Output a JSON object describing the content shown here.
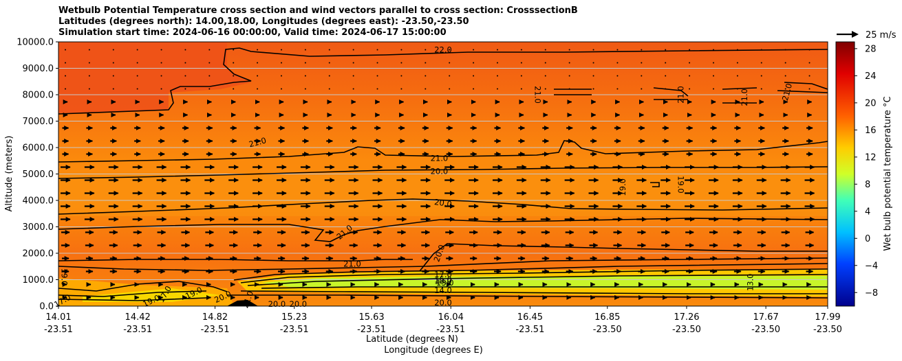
{
  "titles": [
    "Wetbulb Potential Temperature cross section and wind vectors parallel to cross section: CrosssectionB",
    "Latitudes (degrees north): 14.00,18.00, Longitudes (degrees east): -23.50,-23.50",
    "Simulation start time: 2024-06-16 00:00:00, Valid time: 2024-06-17 15:00:00"
  ],
  "quiver_key": "25 m/s",
  "colorbar_label": "Wet bulb potential temperature °C",
  "chart_data": {
    "type": "heatmap",
    "title": "Wetbulb Potential Temperature cross section and wind vectors parallel to cross section: CrosssectionB",
    "ylabel": "Altitude (meters)",
    "xlabel_lat": "Latitude (degrees N)",
    "xlabel_lon": "Longitude (degrees E)",
    "ylim": [
      0,
      10000
    ],
    "y_ticks": [
      "0.0",
      "1000.0",
      "2000.0",
      "3000.0",
      "4000.0",
      "5000.0",
      "6000.0",
      "7000.0",
      "8000.0",
      "9000.0",
      "10000.0"
    ],
    "x_ticks": [
      {
        "lat": "14.01",
        "lon": "-23.51"
      },
      {
        "lat": "14.42",
        "lon": "-23.51"
      },
      {
        "lat": "14.82",
        "lon": "-23.51"
      },
      {
        "lat": "15.23",
        "lon": "-23.51"
      },
      {
        "lat": "15.63",
        "lon": "-23.51"
      },
      {
        "lat": "16.04",
        "lon": "-23.51"
      },
      {
        "lat": "16.45",
        "lon": "-23.51"
      },
      {
        "lat": "16.85",
        "lon": "-23.50"
      },
      {
        "lat": "17.26",
        "lon": "-23.50"
      },
      {
        "lat": "17.67",
        "lon": "-23.50"
      },
      {
        "lat": "17.99",
        "lon": "-23.50"
      }
    ],
    "lat_range": [
      14.01,
      17.99
    ],
    "colorbar_ticks": [
      "28",
      "24",
      "20",
      "16",
      "12",
      "8",
      "4",
      "0",
      "−4",
      "−8"
    ],
    "colorbar_range": [
      -10,
      29
    ],
    "grid": "horizontal",
    "contour_labels": [
      {
        "text": "22.0",
        "lat": 16.0,
        "alt": 9700,
        "rot": 0
      },
      {
        "text": "21.0",
        "lat": 15.04,
        "alt": 6200,
        "rot": -15
      },
      {
        "text": "21.0",
        "lat": 15.98,
        "alt": 5600,
        "rot": 0
      },
      {
        "text": "20.0",
        "lat": 15.98,
        "alt": 5100,
        "rot": 0
      },
      {
        "text": "20.0",
        "lat": 16.0,
        "alt": 3900,
        "rot": 8
      },
      {
        "text": "21.0",
        "lat": 15.49,
        "alt": 2800,
        "rot": -40
      },
      {
        "text": "21.0",
        "lat": 15.53,
        "alt": 1600,
        "rot": 0
      },
      {
        "text": "20.0",
        "lat": 15.98,
        "alt": 2000,
        "rot": -70
      },
      {
        "text": "21.0",
        "lat": 16.49,
        "alt": 8000,
        "rot": 90
      },
      {
        "text": "21.0",
        "lat": 17.23,
        "alt": 8000,
        "rot": -90
      },
      {
        "text": "21.0",
        "lat": 17.56,
        "alt": 7900,
        "rot": -90
      },
      {
        "text": "21.0",
        "lat": 17.78,
        "alt": 8100,
        "rot": -75
      },
      {
        "text": "19.0",
        "lat": 16.93,
        "alt": 4500,
        "rot": -90
      },
      {
        "text": "19.0",
        "lat": 17.23,
        "alt": 4600,
        "rot": 90
      },
      {
        "text": "19.0",
        "lat": 14.04,
        "alt": 1100,
        "rot": 90
      },
      {
        "text": "17.0",
        "lat": 16.0,
        "alt": 1200,
        "rot": 0
      },
      {
        "text": "15.0",
        "lat": 16.0,
        "alt": 1000,
        "rot": 0
      },
      {
        "text": "18.0",
        "lat": 16.0,
        "alt": 950,
        "rot": 0
      },
      {
        "text": "13.0",
        "lat": 16.01,
        "alt": 880,
        "rot": 0
      },
      {
        "text": "14.0",
        "lat": 16.0,
        "alt": 600,
        "rot": 0
      },
      {
        "text": "13.0",
        "lat": 17.59,
        "alt": 900,
        "rot": -90
      },
      {
        "text": "20.0",
        "lat": 16.0,
        "alt": 130,
        "rot": 0
      },
      {
        "text": "19.0",
        "lat": 14.71,
        "alt": 500,
        "rot": -25
      },
      {
        "text": "20.0",
        "lat": 14.86,
        "alt": 350,
        "rot": -25
      },
      {
        "text": "21.0",
        "lat": 14.99,
        "alt": 250,
        "rot": -70
      },
      {
        "text": "20.0",
        "lat": 15.14,
        "alt": 80,
        "rot": 0
      },
      {
        "text": "20.0",
        "lat": 15.25,
        "alt": 80,
        "rot": 0
      },
      {
        "text": "17.0",
        "lat": 14.56,
        "alt": 450,
        "rot": -60
      },
      {
        "text": "19.0",
        "lat": 14.49,
        "alt": 200,
        "rot": -25
      },
      {
        "text": "17.0",
        "lat": 14.03,
        "alt": 200,
        "rot": -30
      }
    ]
  }
}
